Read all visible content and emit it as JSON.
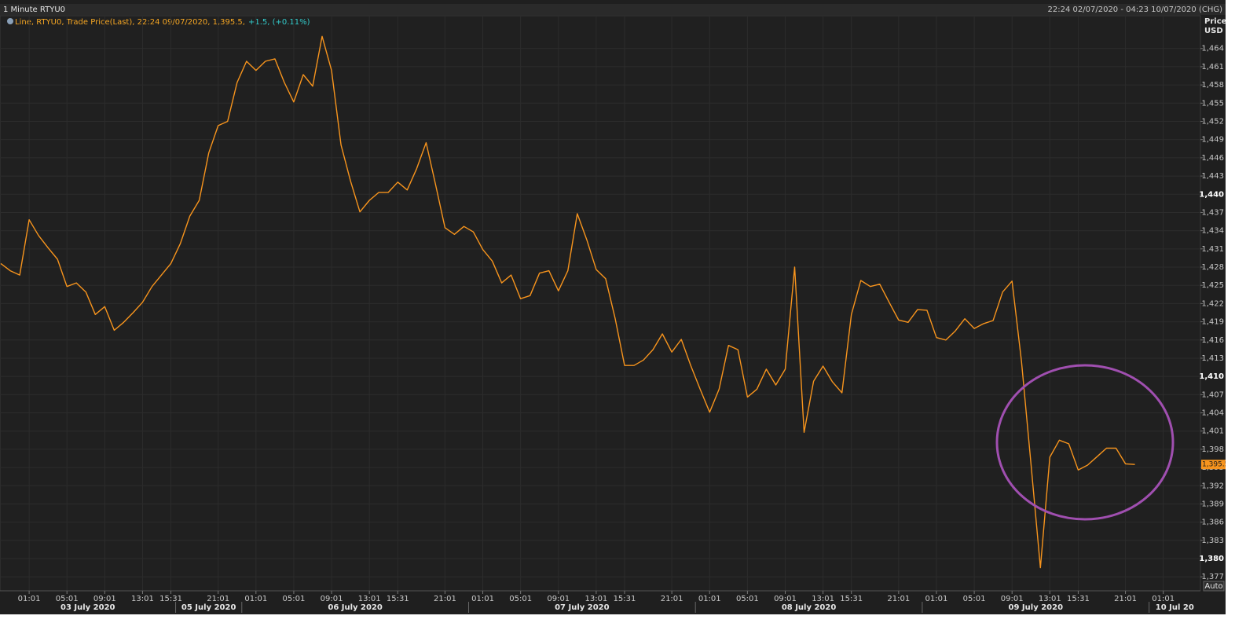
{
  "chart_data": {
    "type": "line",
    "title": "1 Minute RTYU0",
    "date_range": "22:24 02/07/2020 - 04:23 10/07/2020 (CHG)",
    "legend_text": "Line, RTYU0, Trade Price(Last),  22:24 09/07/2020, 1,395.5,",
    "legend_change": "+1.5, (+0.11%)",
    "y_axis_title": "Price",
    "y_axis_unit": "USD",
    "auto_button": "Auto",
    "grid": true,
    "ylim": [
      1374.7,
      1469.4
    ],
    "yticks": [
      {
        "value": 1377,
        "label": "1,377"
      },
      {
        "value": 1380,
        "label": "1,380"
      },
      {
        "value": 1383,
        "label": "1,383"
      },
      {
        "value": 1386,
        "label": "1,386"
      },
      {
        "value": 1389,
        "label": "1,389"
      },
      {
        "value": 1392,
        "label": "1,392"
      },
      {
        "value": 1395,
        "label": "1,395"
      },
      {
        "value": 1398,
        "label": "1,398"
      },
      {
        "value": 1401,
        "label": "1,401"
      },
      {
        "value": 1404,
        "label": "1,404"
      },
      {
        "value": 1407,
        "label": "1,407"
      },
      {
        "value": 1410,
        "label": "1,410"
      },
      {
        "value": 1413,
        "label": "1,413"
      },
      {
        "value": 1416,
        "label": "1,416"
      },
      {
        "value": 1419,
        "label": "1,419"
      },
      {
        "value": 1422,
        "label": "1,422"
      },
      {
        "value": 1425,
        "label": "1,425"
      },
      {
        "value": 1428,
        "label": "1,428"
      },
      {
        "value": 1431,
        "label": "1,431"
      },
      {
        "value": 1434,
        "label": "1,434"
      },
      {
        "value": 1437,
        "label": "1,437"
      },
      {
        "value": 1440,
        "label": "1,440"
      },
      {
        "value": 1443,
        "label": "1,443"
      },
      {
        "value": 1446,
        "label": "1,446"
      },
      {
        "value": 1449,
        "label": "1,449"
      },
      {
        "value": 1452,
        "label": "1,452"
      },
      {
        "value": 1455,
        "label": "1,455"
      },
      {
        "value": 1458,
        "label": "1,458"
      },
      {
        "value": 1461,
        "label": "1,461"
      },
      {
        "value": 1464,
        "label": "1,464"
      }
    ],
    "last_marker": {
      "value": 1395.5,
      "label": "1,395.5"
    },
    "categories": [
      null,
      null,
      null,
      "01:01",
      null,
      null,
      null,
      "05:01",
      null,
      null,
      null,
      "09:01",
      null,
      null,
      null,
      "13:01",
      null,
      null,
      "15:31",
      null,
      null,
      null,
      null,
      "21:01",
      null,
      null,
      null,
      "01:01",
      null,
      null,
      null,
      "05:01",
      null,
      null,
      null,
      "09:01",
      null,
      null,
      null,
      "13:01",
      null,
      null,
      "15:31",
      null,
      null,
      null,
      null,
      "21:01",
      null,
      null,
      null,
      "01:01",
      null,
      null,
      null,
      "05:01",
      null,
      null,
      null,
      "09:01",
      null,
      null,
      null,
      "13:01",
      null,
      null,
      "15:31",
      null,
      null,
      null,
      null,
      "21:01",
      null,
      null,
      null,
      "01:01",
      null,
      null,
      null,
      "05:01",
      null,
      null,
      null,
      "09:01",
      null,
      null,
      null,
      "13:01",
      null,
      null,
      "15:31",
      null,
      null,
      null,
      null,
      "21:01",
      null,
      null,
      null,
      "01:01",
      null,
      null,
      null,
      "05:01",
      null,
      null,
      null,
      "09:01",
      null,
      null,
      null,
      "13:01",
      null,
      null,
      "15:31",
      null,
      null,
      null,
      null,
      "21:01",
      null,
      null,
      null,
      "01:01"
    ],
    "date_categories": [
      "03 July 2020",
      null,
      null,
      null,
      null,
      null,
      null,
      null,
      null,
      null,
      null,
      null,
      null,
      null,
      null,
      null,
      null,
      null,
      null,
      "05 July 2020",
      null,
      null,
      null,
      null,
      null,
      null,
      "06 July 2020",
      null,
      null,
      null,
      null,
      null,
      null,
      null,
      null,
      null,
      null,
      null,
      null,
      null,
      null,
      null,
      null,
      null,
      null,
      null,
      null,
      null,
      null,
      null,
      "07 July 2020",
      null,
      null,
      null,
      null,
      null,
      null,
      null,
      null,
      null,
      null,
      null,
      null,
      null,
      null,
      null,
      null,
      null,
      null,
      null,
      null,
      null,
      null,
      null,
      "08 July 2020",
      null,
      null,
      null,
      null,
      null,
      null,
      null,
      null,
      null,
      null,
      null,
      null,
      null,
      null,
      null,
      null,
      null,
      null,
      null,
      null,
      null,
      null,
      null,
      "09 July 2020",
      null,
      null,
      null,
      null,
      null,
      null,
      null,
      null,
      null,
      null,
      null,
      null,
      null,
      null,
      null,
      null,
      null,
      null,
      null,
      null,
      null,
      null,
      null,
      "10 Jul 20",
      null
    ],
    "series": [
      {
        "name": "RTYU0",
        "color": "#f7941d",
        "values": [
          1428.6,
          1427.4,
          1426.7,
          1435.8,
          1433.2,
          1431.2,
          1429.3,
          1424.8,
          1425.4,
          1423.9,
          1420.2,
          1421.5,
          1417.6,
          1418.9,
          1420.5,
          1422.2,
          1424.8,
          1426.7,
          1428.6,
          1431.9,
          1436.4,
          1439.0,
          1446.8,
          1451.3,
          1452.0,
          1458.4,
          1461.9,
          1460.4,
          1461.9,
          1462.3,
          1458.4,
          1455.2,
          1459.7,
          1457.8,
          1466.0,
          1460.4,
          1448.1,
          1442.2,
          1437.1,
          1439.0,
          1440.3,
          1440.3,
          1442.0,
          1440.7,
          1444.2,
          1448.5,
          1441.6,
          1434.5,
          1433.4,
          1434.7,
          1433.8,
          1430.9,
          1429.0,
          1425.4,
          1426.7,
          1422.8,
          1423.3,
          1427.0,
          1427.4,
          1424.1,
          1427.4,
          1436.8,
          1432.5,
          1427.6,
          1426.1,
          1419.6,
          1411.8,
          1411.8,
          1412.7,
          1414.4,
          1417.0,
          1414.0,
          1416.1,
          1411.8,
          1407.9,
          1404.1,
          1407.9,
          1415.1,
          1414.4,
          1406.6,
          1407.9,
          1411.2,
          1408.6,
          1411.2,
          1428.0,
          1400.8,
          1409.2,
          1411.7,
          1409.1,
          1407.3,
          1420.2,
          1425.8,
          1424.8,
          1425.2,
          1422.2,
          1419.3,
          1418.9,
          1421.0,
          1420.9,
          1416.4,
          1416.0,
          1417.5,
          1419.5,
          1417.9,
          1418.7,
          1419.2,
          1423.9,
          1425.7,
          1412.5,
          1395.6,
          1378.5,
          1396.7,
          1399.5,
          1398.9,
          1394.6,
          1395.4,
          1396.8,
          1398.2,
          1398.2,
          1395.6,
          1395.5,
          null,
          null,
          null
        ]
      }
    ]
  }
}
